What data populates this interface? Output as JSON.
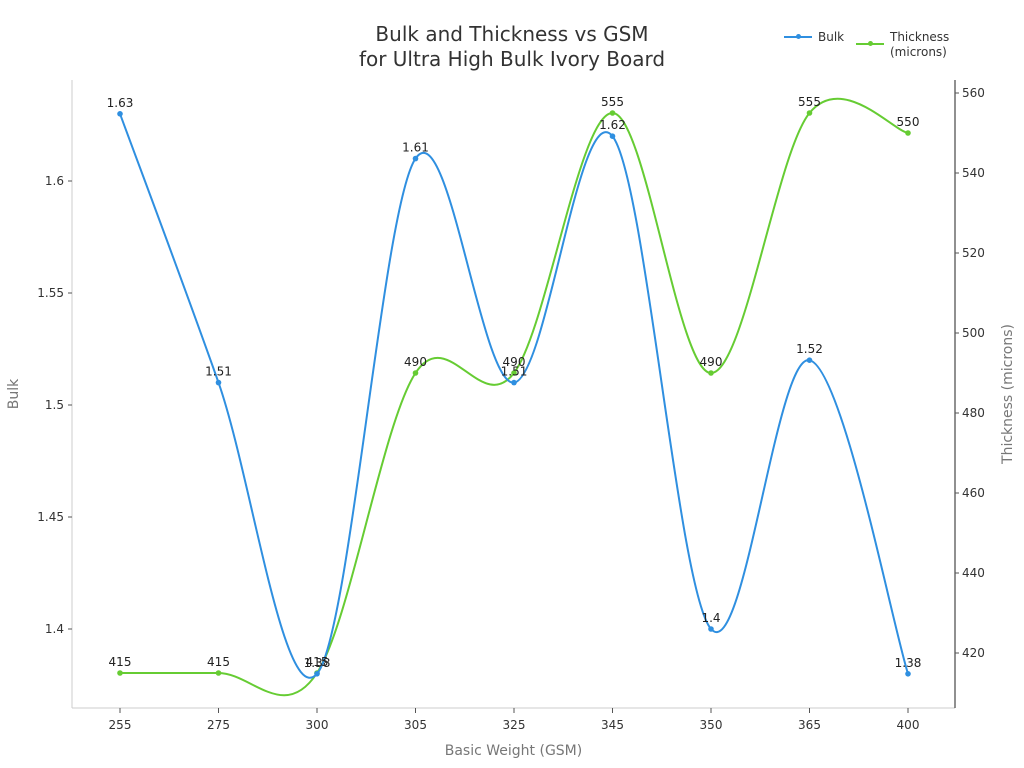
{
  "chart_data": {
    "type": "line",
    "title": "Bulk and Thickness vs GSM\nfor Ultra High Bulk Ivory Board",
    "title_lines": [
      "Bulk and Thickness vs GSM",
      "for Ultra High Bulk Ivory Board"
    ],
    "xlabel": "Basic Weight (GSM)",
    "ylabel": "Bulk",
    "y2label": "Thickness (microns)",
    "categories": [
      "255",
      "275",
      "300",
      "305",
      "325",
      "345",
      "350",
      "365",
      "400"
    ],
    "series": [
      {
        "name": "Bulk",
        "axis": "left",
        "color": "#2f8fe0",
        "values": [
          1.63,
          1.51,
          1.38,
          1.61,
          1.51,
          1.62,
          1.4,
          1.52,
          1.38
        ],
        "labels": [
          "1.63",
          "1.51",
          "1.38",
          "1.61",
          "1.51",
          "1.62",
          "1.4",
          "1.52",
          "1.38"
        ]
      },
      {
        "name": "Thickness (microns)",
        "legend_lines": [
          "Thickness",
          "(microns)"
        ],
        "axis": "right",
        "color": "#66cc33",
        "values": [
          415,
          415,
          415,
          490,
          490,
          555,
          490,
          555,
          550
        ],
        "labels": [
          "415",
          "415",
          "415",
          "490",
          "490",
          "555",
          "490",
          "555",
          "550"
        ]
      }
    ],
    "yticks": [
      "1.4",
      "1.45",
      "1.5",
      "1.55",
      "1.6"
    ],
    "ytick_values": [
      1.4,
      1.45,
      1.5,
      1.55,
      1.6
    ],
    "y2ticks": [
      "420",
      "440",
      "460",
      "480",
      "500",
      "520",
      "540",
      "560"
    ],
    "y2tick_values": [
      420,
      440,
      460,
      480,
      500,
      520,
      540,
      560
    ],
    "ylim": [
      1.3565,
      1.6455
    ],
    "y2lim": [
      410,
      563.5
    ],
    "grid": false,
    "legend_position": "top-right",
    "smooth": true
  }
}
